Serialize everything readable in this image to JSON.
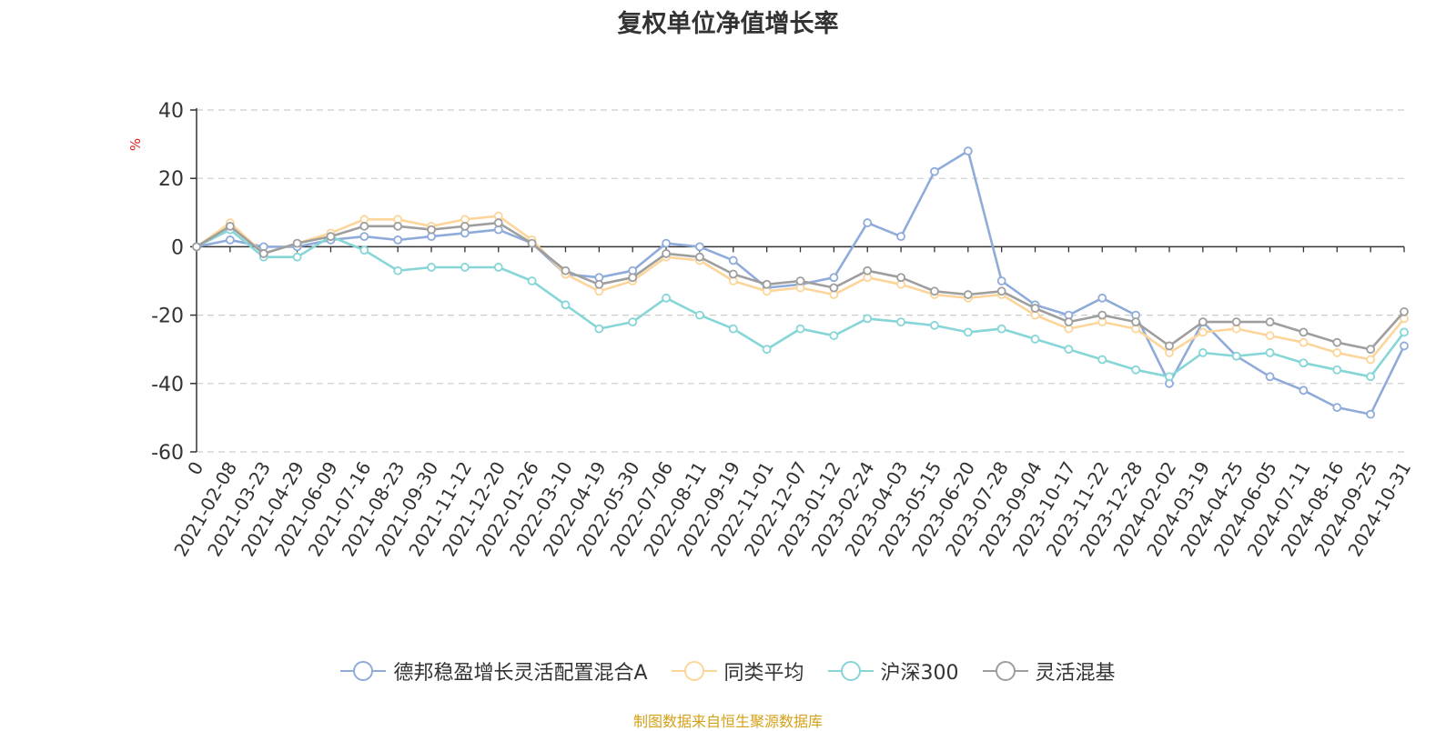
{
  "source_note": "制图数据来自恒生聚源数据库",
  "chart_data": {
    "type": "line",
    "title": "复权单位净值增长率",
    "ylabel": "%",
    "ylim": [
      -60,
      40
    ],
    "yticks": [
      40,
      20,
      0,
      -20,
      -40,
      -60
    ],
    "grid": true,
    "legend_position": "bottom",
    "categories": [
      "0",
      "2021-02-08",
      "2021-03-23",
      "2021-04-29",
      "2021-06-09",
      "2021-07-16",
      "2021-08-23",
      "2021-09-30",
      "2021-11-12",
      "2021-12-20",
      "2022-01-26",
      "2022-03-10",
      "2022-04-19",
      "2022-05-30",
      "2022-07-06",
      "2022-08-11",
      "2022-09-19",
      "2022-11-01",
      "2022-12-07",
      "2023-01-12",
      "2023-02-24",
      "2023-04-03",
      "2023-05-15",
      "2023-06-20",
      "2023-07-28",
      "2023-09-04",
      "2023-10-17",
      "2023-11-22",
      "2023-12-28",
      "2024-02-02",
      "2024-03-19",
      "2024-04-25",
      "2024-06-05",
      "2024-07-11",
      "2024-08-16",
      "2024-09-25",
      "2024-10-31"
    ],
    "series": [
      {
        "name": "德邦稳盈增长灵活配置混合A",
        "color": "#8fabd9",
        "values": [
          0,
          2,
          0,
          0,
          2,
          3,
          2,
          3,
          4,
          5,
          1,
          -8,
          -9,
          -7,
          1,
          0,
          -4,
          -12,
          -11,
          -9,
          7,
          3,
          22,
          28,
          -10,
          -17,
          -20,
          -15,
          -20,
          -40,
          -22,
          -32,
          -38,
          -42,
          -47,
          -49,
          -29
        ]
      },
      {
        "name": "同类平均",
        "color": "#fcd59b",
        "values": [
          0,
          7,
          -2,
          1,
          4,
          8,
          8,
          6,
          8,
          9,
          2,
          -8,
          -13,
          -10,
          -3,
          -4,
          -10,
          -13,
          -12,
          -14,
          -9,
          -11,
          -14,
          -15,
          -14,
          -20,
          -24,
          -22,
          -24,
          -31,
          -25,
          -24,
          -26,
          -28,
          -31,
          -33,
          -21
        ]
      },
      {
        "name": "沪深300",
        "color": "#86d5d7",
        "values": [
          0,
          5,
          -3,
          -3,
          3,
          -1,
          -7,
          -6,
          -6,
          -6,
          -10,
          -17,
          -24,
          -22,
          -15,
          -20,
          -24,
          -30,
          -24,
          -26,
          -21,
          -22,
          -23,
          -25,
          -24,
          -27,
          -30,
          -33,
          -36,
          -38,
          -31,
          -32,
          -31,
          -34,
          -36,
          -38,
          -25
        ]
      },
      {
        "name": "灵活混基",
        "color": "#9e9e9e",
        "values": [
          0,
          6,
          -2,
          1,
          3,
          6,
          6,
          5,
          6,
          7,
          1,
          -7,
          -11,
          -9,
          -2,
          -3,
          -8,
          -11,
          -10,
          -12,
          -7,
          -9,
          -13,
          -14,
          -13,
          -18,
          -22,
          -20,
          -22,
          -29,
          -22,
          -22,
          -22,
          -25,
          -28,
          -30,
          -19
        ]
      }
    ]
  }
}
